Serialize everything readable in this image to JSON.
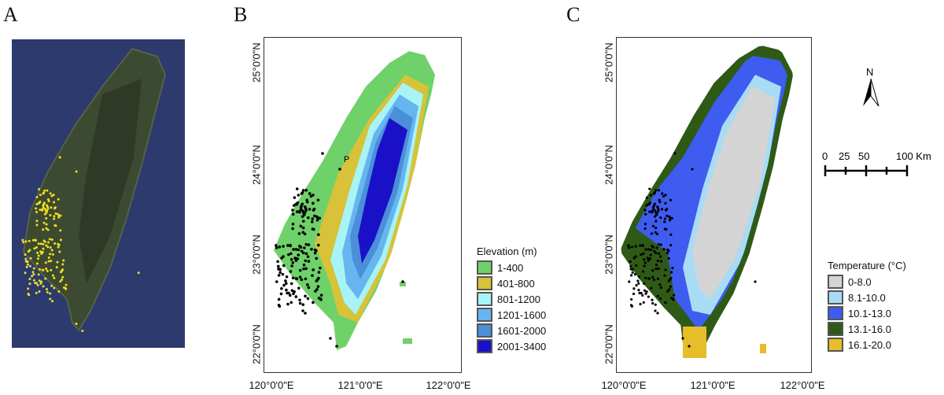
{
  "panels": {
    "a": {
      "label": "A"
    },
    "b": {
      "label": "B",
      "point_label": "P"
    },
    "c": {
      "label": "C"
    }
  },
  "axes": {
    "y_ticks": [
      "25°0'0\"N",
      "24°0'0\"N",
      "23°0'0\"N",
      "22°0'0\"N"
    ],
    "x_ticks": [
      "120°0'0\"E",
      "121°0'0\"E",
      "122°0'0\"E"
    ]
  },
  "elevation_legend": {
    "title": "Elevation (m)",
    "items": [
      {
        "label": "1-400",
        "color": "#6fd16a"
      },
      {
        "label": "401-800",
        "color": "#d7c239"
      },
      {
        "label": "801-1200",
        "color": "#a8f3f6"
      },
      {
        "label": "1201-1600",
        "color": "#66b5f0"
      },
      {
        "label": "1601-2000",
        "color": "#4a8fd8"
      },
      {
        "label": "2001-3400",
        "color": "#1a10c8"
      }
    ]
  },
  "temperature_legend": {
    "title": "Temperature (°C)",
    "items": [
      {
        "label": "0-8.0",
        "color": "#d4d4d4"
      },
      {
        "label": "8.1-10.0",
        "color": "#a8dcf5"
      },
      {
        "label": "10.1-13.0",
        "color": "#3e5cf0"
      },
      {
        "label": "13.1-16.0",
        "color": "#2f5a16"
      },
      {
        "label": "16.1-20.0",
        "color": "#e8bd2a"
      }
    ]
  },
  "north_arrow": {
    "label": "N"
  },
  "scale_bar": {
    "labels": [
      "0",
      "25",
      "50",
      "100 Km"
    ]
  }
}
